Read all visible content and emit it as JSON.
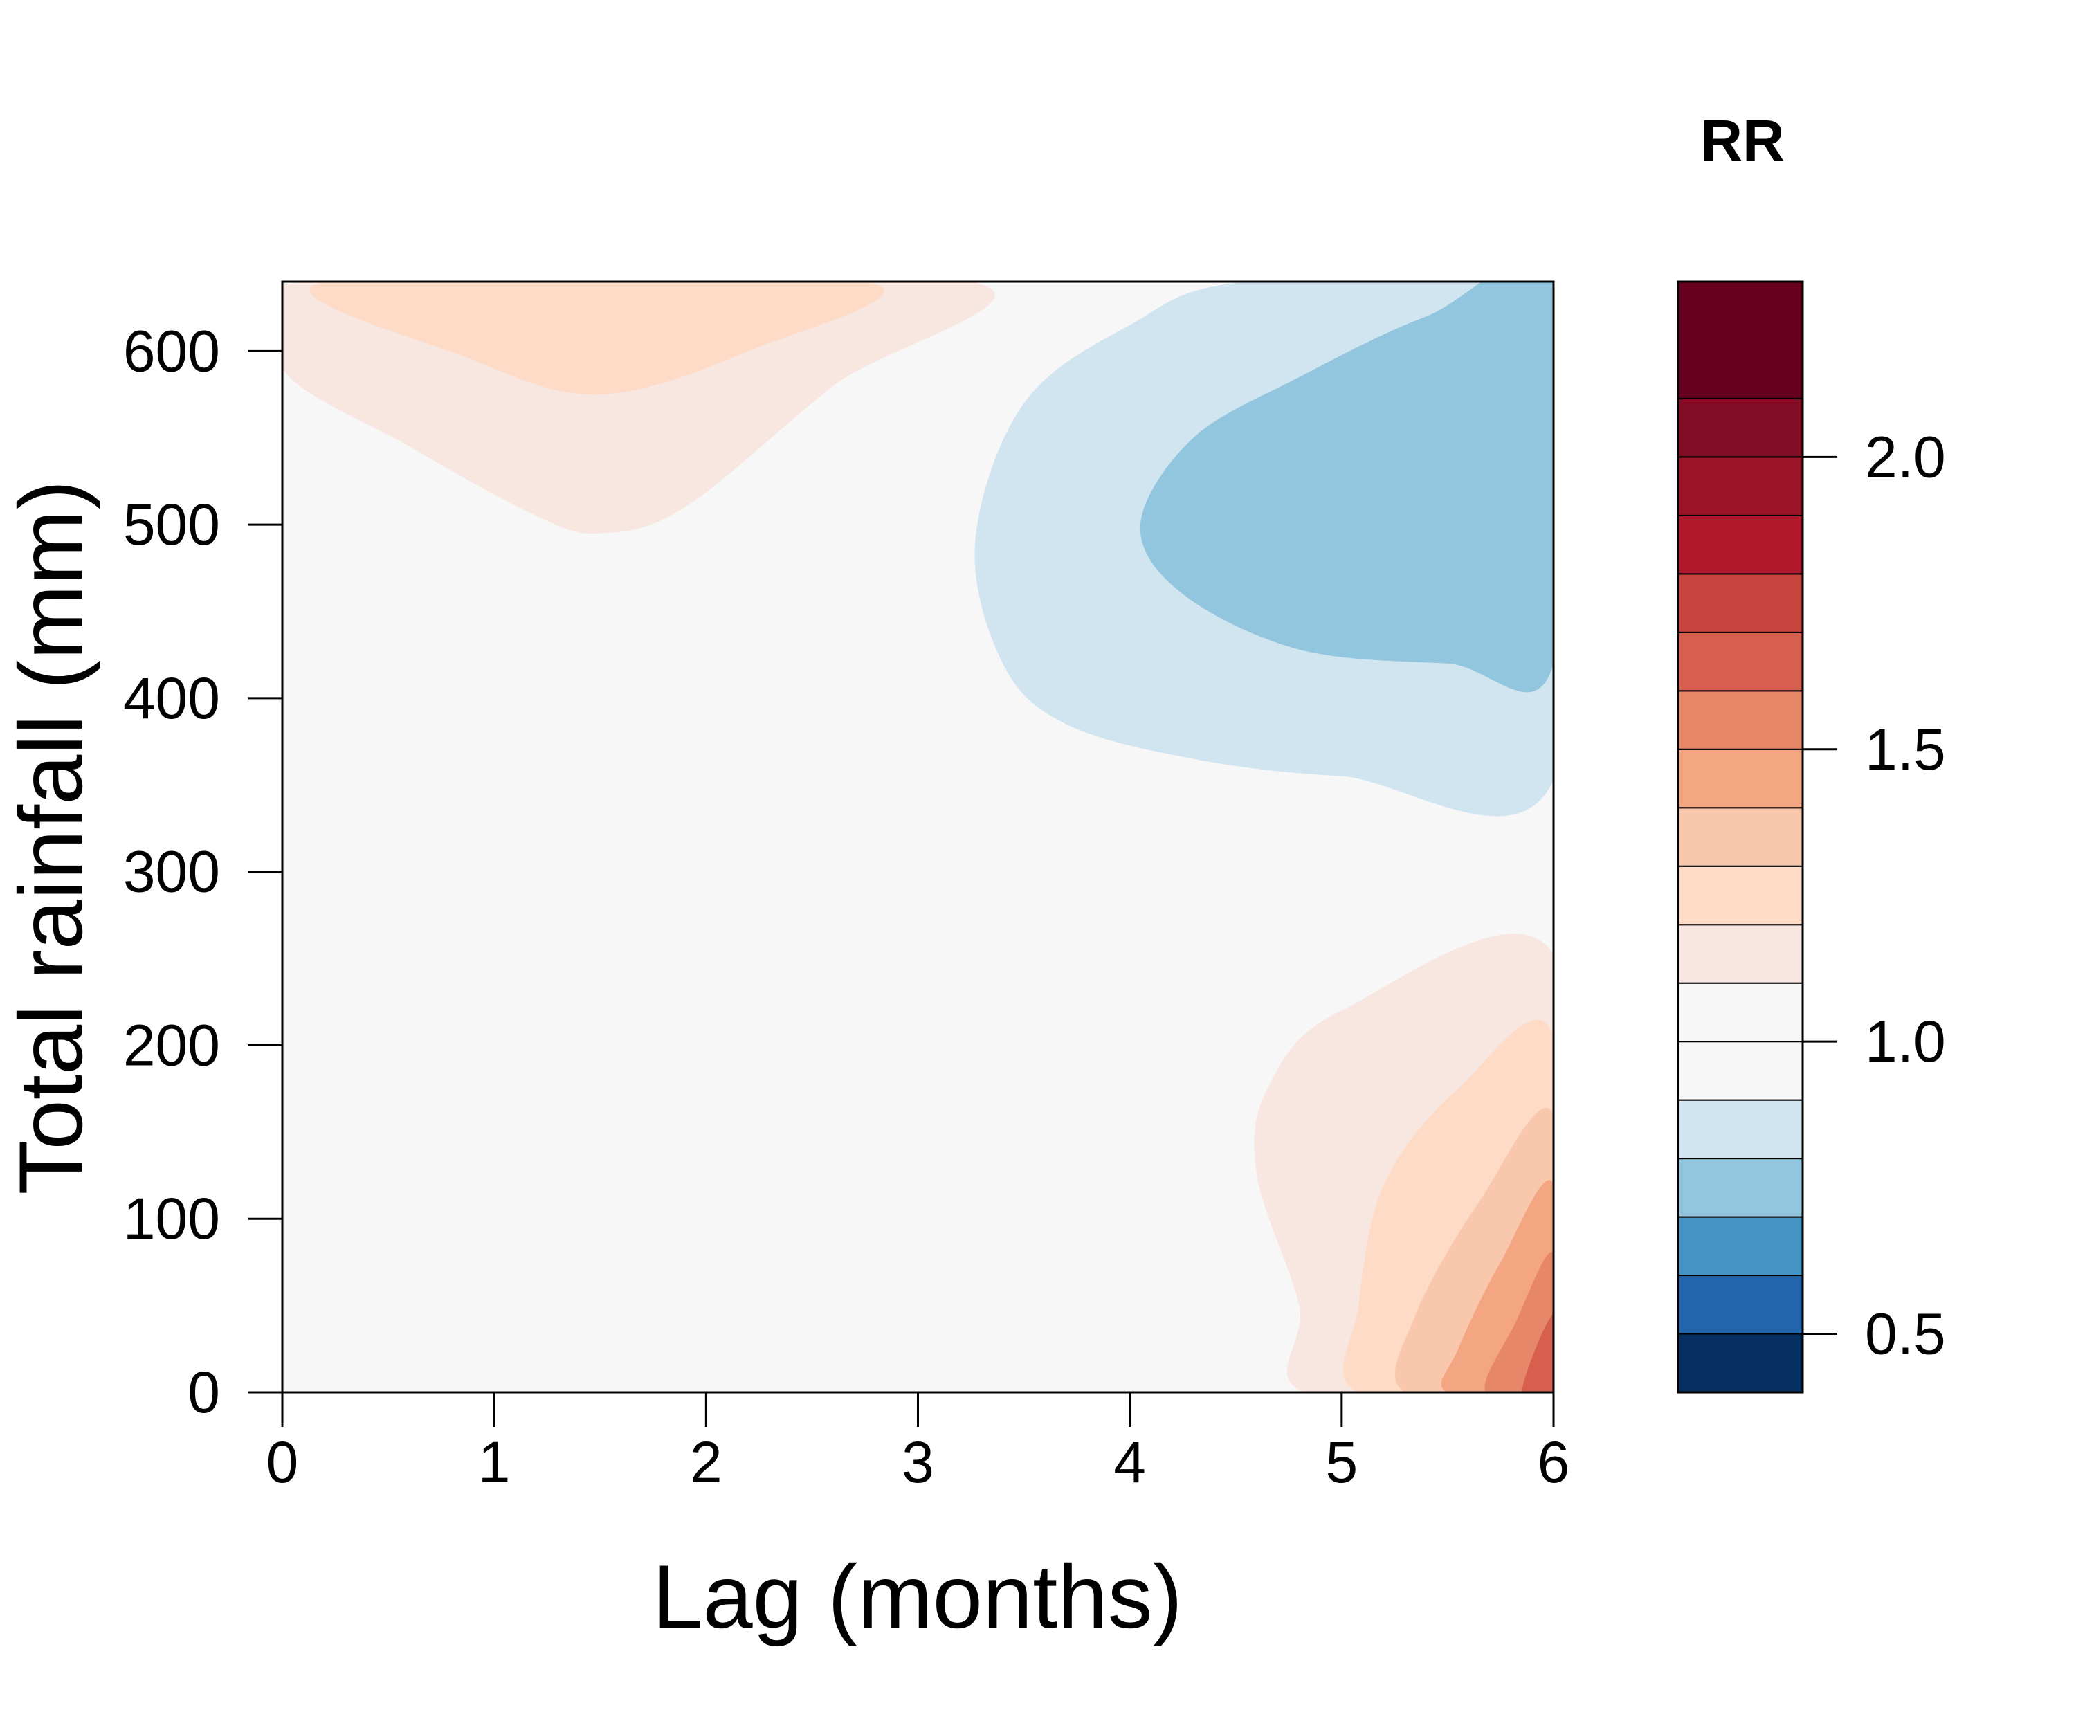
{
  "chart_data": {
    "type": "heatmap",
    "subtype": "filled-contour",
    "title": "",
    "xlabel": "Lag (months)",
    "ylabel": "Total rainfall (mm)",
    "xlim": [
      0,
      6
    ],
    "ylim": [
      0,
      640
    ],
    "x_ticks": [
      "0",
      "1",
      "2",
      "3",
      "4",
      "5",
      "6"
    ],
    "y_ticks": [
      "0",
      "100",
      "200",
      "300",
      "400",
      "500",
      "600"
    ],
    "colorbar": {
      "title": "RR",
      "range": [
        0.4,
        2.3
      ],
      "tick_values": [
        0.5,
        1.0,
        1.5,
        2.0
      ],
      "tick_labels": [
        "0.5",
        "1.0",
        "1.5",
        "2.0"
      ],
      "bins": [
        {
          "lo": 0.4,
          "hi": 0.5,
          "color": "#053061"
        },
        {
          "lo": 0.5,
          "hi": 0.6,
          "color": "#2166ac"
        },
        {
          "lo": 0.6,
          "hi": 0.7,
          "color": "#4393c3"
        },
        {
          "lo": 0.7,
          "hi": 0.8,
          "color": "#92c5de"
        },
        {
          "lo": 0.8,
          "hi": 0.9,
          "color": "#d1e5f0"
        },
        {
          "lo": 0.9,
          "hi": 1.0,
          "color": "#f7f7f7"
        },
        {
          "lo": 1.0,
          "hi": 1.1,
          "color": "#f7f7f7"
        },
        {
          "lo": 1.1,
          "hi": 1.2,
          "color": "#f8e6e0"
        },
        {
          "lo": 1.2,
          "hi": 1.3,
          "color": "#fddbc7"
        },
        {
          "lo": 1.3,
          "hi": 1.4,
          "color": "#f9c8ac"
        },
        {
          "lo": 1.4,
          "hi": 1.5,
          "color": "#f4a582"
        },
        {
          "lo": 1.5,
          "hi": 1.6,
          "color": "#e7876a"
        },
        {
          "lo": 1.6,
          "hi": 1.7,
          "color": "#d6604d"
        },
        {
          "lo": 1.7,
          "hi": 1.8,
          "color": "#c8453f"
        },
        {
          "lo": 1.8,
          "hi": 1.9,
          "color": "#b2182b"
        },
        {
          "lo": 1.9,
          "hi": 2.0,
          "color": "#9b1428"
        },
        {
          "lo": 2.0,
          "hi": 2.1,
          "color": "#830d24"
        },
        {
          "lo": 2.1,
          "hi": 2.3,
          "color": "#67001f"
        }
      ]
    },
    "regions": [
      {
        "rr_bin": "1.1-1.2",
        "color": "#f8e6e0",
        "points": [
          [
            0,
            590
          ],
          [
            0.1,
            640
          ],
          [
            3.25,
            640
          ],
          [
            2.6,
            580
          ],
          [
            1.9,
            510
          ],
          [
            1.5,
            495
          ],
          [
            1.2,
            505
          ],
          [
            0.6,
            545
          ]
        ]
      },
      {
        "rr_bin": "1.2-1.3",
        "color": "#fddbc7",
        "points": [
          [
            0.2,
            640
          ],
          [
            2.75,
            640
          ],
          [
            2.2,
            600
          ],
          [
            1.5,
            575
          ],
          [
            0.9,
            595
          ]
        ]
      },
      {
        "rr_bin": "0.8-0.9",
        "color": "#d1e5f0",
        "points": [
          [
            6,
            640
          ],
          [
            4.55,
            640
          ],
          [
            4.0,
            615
          ],
          [
            3.5,
            570
          ],
          [
            3.27,
            490
          ],
          [
            3.4,
            420
          ],
          [
            3.7,
            385
          ],
          [
            4.3,
            365
          ],
          [
            5.0,
            355
          ],
          [
            6,
            353
          ]
        ]
      },
      {
        "rr_bin": "0.7-0.8",
        "color": "#92c5de",
        "points": [
          [
            6,
            640
          ],
          [
            5.4,
            620
          ],
          [
            4.8,
            585
          ],
          [
            4.3,
            550
          ],
          [
            4.05,
            500
          ],
          [
            4.25,
            460
          ],
          [
            4.8,
            428
          ],
          [
            5.5,
            420
          ],
          [
            6,
            420
          ]
        ]
      },
      {
        "rr_bin": "1.1-1.2",
        "color": "#f8e6e0",
        "points": [
          [
            6,
            252
          ],
          [
            5.0,
            220
          ],
          [
            4.65,
            175
          ],
          [
            4.6,
            125
          ],
          [
            4.8,
            50
          ],
          [
            4.83,
            0
          ],
          [
            6,
            0
          ]
        ]
      },
      {
        "rr_bin": "1.2-1.3",
        "color": "#fddbc7",
        "points": [
          [
            6,
            205
          ],
          [
            5.55,
            175
          ],
          [
            5.2,
            120
          ],
          [
            5.08,
            50
          ],
          [
            5.08,
            0
          ],
          [
            6,
            0
          ]
        ]
      },
      {
        "rr_bin": "1.3-1.4",
        "color": "#f9c8ac",
        "points": [
          [
            6,
            160
          ],
          [
            5.65,
            110
          ],
          [
            5.35,
            45
          ],
          [
            5.3,
            0
          ],
          [
            6,
            0
          ]
        ]
      },
      {
        "rr_bin": "1.4-1.5",
        "color": "#f4a582",
        "points": [
          [
            6,
            120
          ],
          [
            5.75,
            75
          ],
          [
            5.55,
            25
          ],
          [
            5.5,
            0
          ],
          [
            6,
            0
          ]
        ]
      },
      {
        "rr_bin": "1.5-1.6",
        "color": "#e7876a",
        "points": [
          [
            6,
            80
          ],
          [
            5.82,
            40
          ],
          [
            5.68,
            0
          ],
          [
            6,
            0
          ]
        ]
      },
      {
        "rr_bin": "1.6-1.7",
        "color": "#d6604d",
        "points": [
          [
            6,
            45
          ],
          [
            5.85,
            0
          ],
          [
            6,
            0
          ]
        ]
      }
    ],
    "background_color": "#f7f7f7",
    "grid": false,
    "legend": "right"
  }
}
